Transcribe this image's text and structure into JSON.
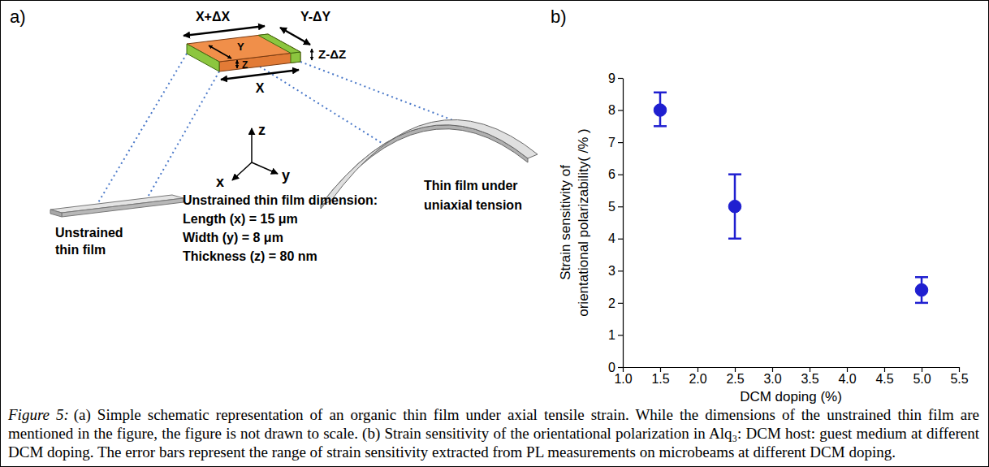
{
  "chart_data": {
    "type": "scatter",
    "panel_label": "b)",
    "x_label": "DCM doping (%)",
    "y_label": [
      "Strain sensitivity of",
      "orientational polarizability( /% )"
    ],
    "x": [
      1.5,
      2.5,
      5.0
    ],
    "values": [
      8.0,
      5.0,
      2.4
    ],
    "error_minus": [
      0.5,
      1.0,
      0.4
    ],
    "error_plus": [
      0.55,
      1.0,
      0.4
    ],
    "color": "#1f1fd0",
    "marker": "circle",
    "xlim": [
      1.0,
      5.5
    ],
    "xticks": [
      {
        "value": 1.0,
        "label": "1.0"
      },
      1.5,
      {
        "value": 2.0,
        "label": "2.0"
      },
      2.5,
      {
        "value": 3.0,
        "label": "3.0"
      },
      3.5,
      {
        "value": 4.0,
        "label": "4.0"
      },
      4.5,
      {
        "value": 5.0,
        "label": "5.0"
      },
      5.5
    ],
    "ylim": [
      0,
      9
    ],
    "yticks": [
      0,
      1,
      2,
      3,
      4,
      5,
      6,
      7,
      8,
      9
    ],
    "grid": false
  },
  "diagram": {
    "panel_label": "a)",
    "labels": {
      "x_strained": "X+ΔX",
      "y_strained": "Y-ΔY",
      "y": "Y",
      "z": "Z",
      "z_strained": "Z-ΔZ",
      "x": "X"
    },
    "unstrained_label": [
      "Unstrained",
      "thin film"
    ],
    "strained_label": [
      "Thin film under",
      "uniaxial tension"
    ],
    "axes": {
      "z": "z",
      "x": "x",
      "y": "y"
    },
    "dimensions": {
      "title": "Unstrained thin film dimension:",
      "lines": [
        "Length (x) = 15 μm",
        "Width (y) = 8 μm",
        "Thickness (z) = 80 nm"
      ]
    }
  },
  "caption": {
    "label": "Figure 5:",
    "text": "(a) Simple schematic representation of an organic thin film under axial tensile strain. While the dimensions of the unstrained thin film are mentioned in the figure, the figure is not drawn to scale. (b) Strain sensitivity of the orientational polarization in Alq₃: DCM host: guest medium at different DCM doping. The error bars represent the range of strain sensitivity extracted from PL measurements on microbeams at different DCM doping."
  }
}
